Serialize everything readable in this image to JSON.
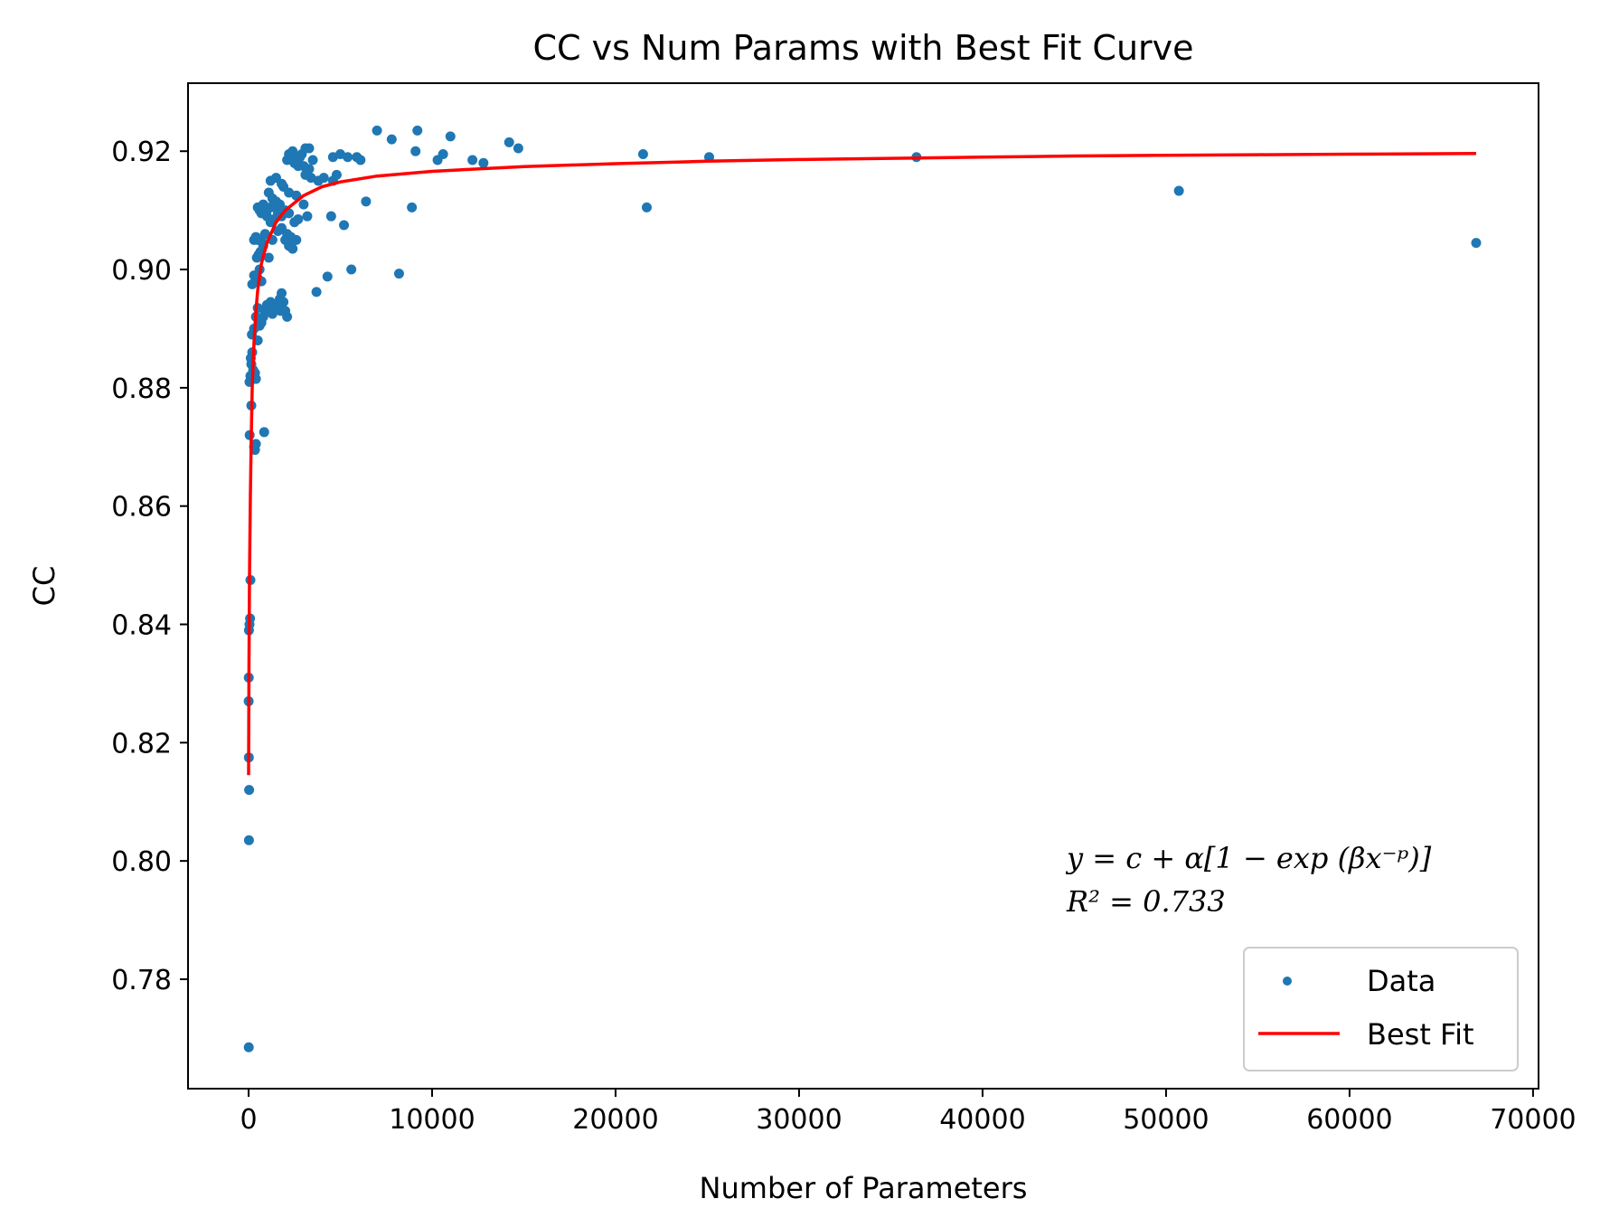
{
  "chart_data": {
    "type": "scatter",
    "title": "CC vs Num Params with Best Fit Curve",
    "xlabel": "Number of Parameters",
    "ylabel": "CC",
    "xlim": [
      -3300,
      70300
    ],
    "ylim": [
      0.7615,
      0.9315
    ],
    "xticks": [
      0,
      10000,
      20000,
      30000,
      40000,
      50000,
      60000,
      70000
    ],
    "yticks": [
      0.78,
      0.8,
      0.82,
      0.84,
      0.86,
      0.88,
      0.9,
      0.92
    ],
    "grid": false,
    "legend_position": "lower-right",
    "series": [
      {
        "name": "Data",
        "kind": "scatter",
        "color": "#1f77b4",
        "points": [
          [
            10,
            0.7685
          ],
          [
            20,
            0.8035
          ],
          [
            30,
            0.812
          ],
          [
            15,
            0.8175
          ],
          [
            5,
            0.827
          ],
          [
            10,
            0.831
          ],
          [
            20,
            0.839
          ],
          [
            50,
            0.84
          ],
          [
            80,
            0.841
          ],
          [
            100,
            0.8475
          ],
          [
            60,
            0.872
          ],
          [
            150,
            0.877
          ],
          [
            300,
            0.87
          ],
          [
            350,
            0.8695
          ],
          [
            400,
            0.8705
          ],
          [
            850,
            0.8725
          ],
          [
            50,
            0.881
          ],
          [
            100,
            0.882
          ],
          [
            150,
            0.884
          ],
          [
            200,
            0.886
          ],
          [
            120,
            0.885
          ],
          [
            180,
            0.889
          ],
          [
            250,
            0.883
          ],
          [
            350,
            0.8825
          ],
          [
            400,
            0.8815
          ],
          [
            500,
            0.888
          ],
          [
            300,
            0.89
          ],
          [
            400,
            0.892
          ],
          [
            500,
            0.8935
          ],
          [
            600,
            0.8905
          ],
          [
            700,
            0.891
          ],
          [
            800,
            0.892
          ],
          [
            900,
            0.893
          ],
          [
            1000,
            0.894
          ],
          [
            1100,
            0.8935
          ],
          [
            1200,
            0.8945
          ],
          [
            1300,
            0.8925
          ],
          [
            1400,
            0.8935
          ],
          [
            1500,
            0.894
          ],
          [
            1700,
            0.895
          ],
          [
            1800,
            0.896
          ],
          [
            1900,
            0.8945
          ],
          [
            2000,
            0.893
          ],
          [
            2100,
            0.892
          ],
          [
            1600,
            0.894
          ],
          [
            1750,
            0.893
          ],
          [
            200,
            0.8975
          ],
          [
            300,
            0.899
          ],
          [
            400,
            0.898
          ],
          [
            500,
            0.8985
          ],
          [
            600,
            0.9
          ],
          [
            700,
            0.898
          ],
          [
            450,
            0.902
          ],
          [
            550,
            0.9025
          ],
          [
            650,
            0.903
          ],
          [
            800,
            0.904
          ],
          [
            300,
            0.905
          ],
          [
            400,
            0.9055
          ],
          [
            500,
            0.905
          ],
          [
            700,
            0.905
          ],
          [
            900,
            0.906
          ],
          [
            1100,
            0.902
          ],
          [
            1300,
            0.905
          ],
          [
            1600,
            0.9065
          ],
          [
            1800,
            0.907
          ],
          [
            2000,
            0.905
          ],
          [
            2200,
            0.904
          ],
          [
            2400,
            0.9035
          ],
          [
            2600,
            0.905
          ],
          [
            2100,
            0.906
          ],
          [
            2300,
            0.9055
          ],
          [
            2500,
            0.908
          ],
          [
            2700,
            0.9085
          ],
          [
            1000,
            0.909
          ],
          [
            1200,
            0.908
          ],
          [
            1400,
            0.9085
          ],
          [
            600,
            0.91
          ],
          [
            800,
            0.911
          ],
          [
            1000,
            0.91
          ],
          [
            1200,
            0.9105
          ],
          [
            1400,
            0.911
          ],
          [
            1600,
            0.9095
          ],
          [
            500,
            0.9105
          ],
          [
            700,
            0.9095
          ],
          [
            1800,
            0.909
          ],
          [
            2000,
            0.91
          ],
          [
            2200,
            0.9095
          ],
          [
            1100,
            0.913
          ],
          [
            1300,
            0.912
          ],
          [
            1500,
            0.9115
          ],
          [
            1700,
            0.911
          ],
          [
            1900,
            0.914
          ],
          [
            1200,
            0.915
          ],
          [
            1500,
            0.9155
          ],
          [
            1800,
            0.9145
          ],
          [
            2200,
            0.913
          ],
          [
            2600,
            0.9125
          ],
          [
            3000,
            0.911
          ],
          [
            3200,
            0.909
          ],
          [
            3400,
            0.9155
          ],
          [
            3800,
            0.915
          ],
          [
            4100,
            0.9155
          ],
          [
            4600,
            0.915
          ],
          [
            4800,
            0.916
          ],
          [
            3100,
            0.916
          ],
          [
            3300,
            0.917
          ],
          [
            2100,
            0.9185
          ],
          [
            2300,
            0.919
          ],
          [
            2500,
            0.918
          ],
          [
            2700,
            0.9175
          ],
          [
            2900,
            0.9195
          ],
          [
            3100,
            0.9205
          ],
          [
            3300,
            0.9205
          ],
          [
            3500,
            0.9185
          ],
          [
            2200,
            0.9195
          ],
          [
            2400,
            0.92
          ],
          [
            2600,
            0.919
          ],
          [
            2800,
            0.919
          ],
          [
            3000,
            0.9175
          ],
          [
            4600,
            0.919
          ],
          [
            5000,
            0.9195
          ],
          [
            5400,
            0.919
          ],
          [
            5900,
            0.919
          ],
          [
            6100,
            0.9185
          ],
          [
            7000,
            0.9235
          ],
          [
            7800,
            0.922
          ],
          [
            9200,
            0.9235
          ],
          [
            9100,
            0.92
          ],
          [
            10300,
            0.9185
          ],
          [
            10600,
            0.9195
          ],
          [
            11000,
            0.9225
          ],
          [
            12200,
            0.9185
          ],
          [
            12800,
            0.918
          ],
          [
            14200,
            0.9215
          ],
          [
            14700,
            0.9205
          ],
          [
            21500,
            0.9195
          ],
          [
            25100,
            0.919
          ],
          [
            36400,
            0.919
          ],
          [
            21700,
            0.9105
          ],
          [
            50700,
            0.9133
          ],
          [
            66900,
            0.9045
          ],
          [
            8900,
            0.9105
          ],
          [
            6400,
            0.9115
          ],
          [
            4500,
            0.909
          ],
          [
            5200,
            0.9075
          ],
          [
            5600,
            0.9
          ],
          [
            8200,
            0.8993
          ],
          [
            4300,
            0.8988
          ],
          [
            3700,
            0.8962
          ]
        ]
      },
      {
        "name": "Best Fit",
        "kind": "line",
        "color": "#ff0000",
        "points": [
          [
            0,
            0.8145
          ],
          [
            20,
            0.832
          ],
          [
            50,
            0.848
          ],
          [
            100,
            0.862
          ],
          [
            150,
            0.872
          ],
          [
            200,
            0.88
          ],
          [
            300,
            0.888
          ],
          [
            400,
            0.893
          ],
          [
            500,
            0.8965
          ],
          [
            700,
            0.901
          ],
          [
            1000,
            0.9045
          ],
          [
            1500,
            0.908
          ],
          [
            2000,
            0.91
          ],
          [
            3000,
            0.9125
          ],
          [
            4000,
            0.914
          ],
          [
            5000,
            0.9148
          ],
          [
            7000,
            0.9158
          ],
          [
            10000,
            0.9166
          ],
          [
            15000,
            0.9174
          ],
          [
            20000,
            0.9179
          ],
          [
            25000,
            0.9183
          ],
          [
            30000,
            0.9186
          ],
          [
            35000,
            0.9188
          ],
          [
            40000,
            0.919
          ],
          [
            45000,
            0.9192
          ],
          [
            50000,
            0.9193
          ],
          [
            55000,
            0.9194
          ],
          [
            60000,
            0.9195
          ],
          [
            66900,
            0.9196
          ]
        ]
      }
    ],
    "annotation": {
      "equation": "y = c + α[1 − exp (βx⁻ᵖ)]",
      "r_squared": "R² = 0.733"
    }
  }
}
